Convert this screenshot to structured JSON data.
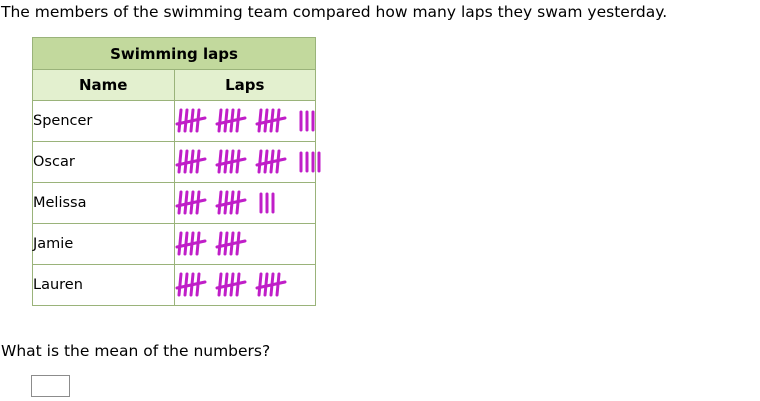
{
  "intro_text": "The members of the swimming team compared how many laps they swam yesterday.",
  "table": {
    "title": "Swimming laps",
    "col_name": "Name",
    "col_laps": "Laps",
    "tally_color": "#c01ec8",
    "rows": [
      {
        "name": "Spencer",
        "laps": 18
      },
      {
        "name": "Oscar",
        "laps": 19
      },
      {
        "name": "Melissa",
        "laps": 13
      },
      {
        "name": "Jamie",
        "laps": 10
      },
      {
        "name": "Lauren",
        "laps": 15
      }
    ]
  },
  "question": "What is the mean of the numbers?",
  "answer": {
    "value": ""
  }
}
